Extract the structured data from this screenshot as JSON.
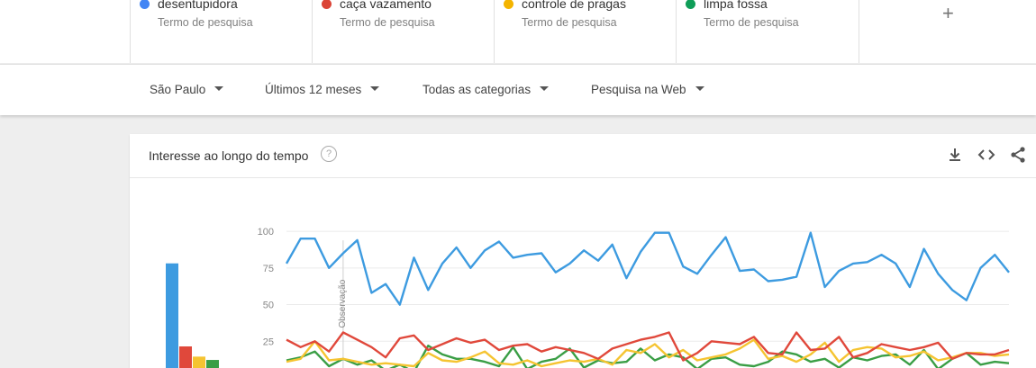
{
  "terms": [
    {
      "name": "desentupidora",
      "sub": "Termo de pesquisa",
      "color": "#4285f4"
    },
    {
      "name": "caça vazamento",
      "sub": "Termo de pesquisa",
      "color": "#db4437"
    },
    {
      "name": "controle de pragas",
      "sub": "Termo de pesquisa",
      "color": "#f4b400"
    },
    {
      "name": "limpa fossa",
      "sub": "Termo de pesquisa",
      "color": "#0f9d58"
    }
  ],
  "add_label": "+",
  "filters": {
    "region": "São Paulo",
    "time": "Últimos 12 meses",
    "category": "Todas as categorias",
    "search_type": "Pesquisa na Web"
  },
  "card": {
    "title": "Interesse ao longo do tempo",
    "help_icon": "?",
    "download_icon": "download-icon",
    "embed_icon": "embed-icon",
    "share_icon": "share-icon"
  },
  "chart_data": {
    "type": "line",
    "yticks": [
      "100",
      "75",
      "50",
      "25"
    ],
    "ylim": [
      0,
      100
    ],
    "annotation": "Observação",
    "series": [
      {
        "name": "desentupidora",
        "color": "#3d9be0",
        "values": [
          78,
          95,
          95,
          75,
          85,
          94,
          58,
          64,
          50,
          82,
          60,
          78,
          89,
          75,
          87,
          93,
          82,
          84,
          85,
          72,
          78,
          87,
          80,
          91,
          68,
          86,
          99,
          99,
          76,
          71,
          84,
          96,
          73,
          74,
          66,
          67,
          69,
          99,
          62,
          73,
          78,
          79,
          84,
          78,
          62,
          88,
          71,
          60,
          53,
          75,
          84,
          72
        ]
      },
      {
        "name": "caça vazamento",
        "color": "#e0483b",
        "values": [
          26,
          21,
          25,
          18,
          31,
          26,
          21,
          14,
          27,
          29,
          19,
          23,
          27,
          24,
          26,
          19,
          22,
          23,
          18,
          21,
          19,
          17,
          13,
          20,
          23,
          26,
          28,
          31,
          12,
          17,
          25,
          24,
          23,
          28,
          17,
          16,
          31,
          19,
          20,
          28,
          14,
          17,
          23,
          21,
          19,
          21,
          24,
          13,
          17,
          16,
          16,
          19
        ]
      },
      {
        "name": "controle de pragas",
        "color": "#f5c431",
        "values": [
          11,
          13,
          25,
          12,
          13,
          11,
          9,
          10,
          9,
          8,
          17,
          12,
          11,
          14,
          18,
          10,
          9,
          12,
          8,
          10,
          12,
          11,
          13,
          9,
          19,
          17,
          23,
          14,
          19,
          12,
          14,
          16,
          20,
          26,
          13,
          15,
          11,
          16,
          24,
          11,
          19,
          21,
          20,
          14,
          15,
          18,
          12,
          14,
          17,
          17,
          15,
          16
        ]
      },
      {
        "name": "limpa fossa",
        "color": "#3a9e45",
        "values": [
          12,
          14,
          18,
          8,
          13,
          9,
          12,
          5,
          9,
          4,
          22,
          16,
          13,
          13,
          11,
          8,
          21,
          6,
          11,
          13,
          20,
          7,
          12,
          10,
          11,
          20,
          12,
          16,
          14,
          6,
          13,
          14,
          9,
          8,
          11,
          18,
          16,
          11,
          13,
          7,
          14,
          12,
          15,
          16,
          9,
          19,
          6,
          13,
          17,
          9,
          11,
          10
        ]
      }
    ]
  }
}
